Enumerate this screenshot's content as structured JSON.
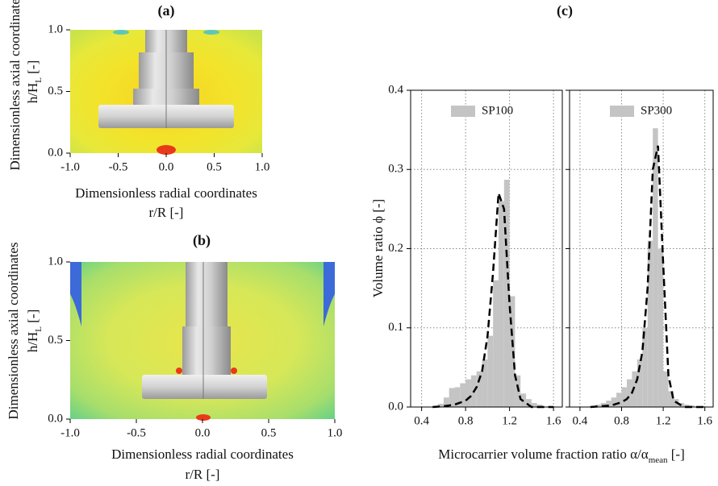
{
  "chart_data": [
    {
      "type": "contour",
      "title": "(a)",
      "xlabel": [
        "Dimensionless radial coordinates",
        "r/R [-]"
      ],
      "ylabel": [
        "Dimensionless axial coordinates",
        [
          "h/H",
          "L",
          " [-]"
        ]
      ],
      "xlim": [
        -1,
        1
      ],
      "ylim": [
        0,
        1
      ],
      "xticks": [
        {
          "value": -1,
          "label": "-1.0"
        },
        -0.5,
        {
          "value": 0,
          "label": "0.0"
        },
        0.5,
        {
          "value": 1,
          "label": "1.0"
        }
      ],
      "yticks": [
        {
          "value": 0,
          "label": "0.0"
        },
        0.5,
        {
          "value": 1,
          "label": "1.0"
        }
      ]
    },
    {
      "type": "contour",
      "title": "(b)",
      "xlabel": [
        "Dimensionless radial coordinates",
        "r/R [-]"
      ],
      "ylabel": [
        "Dimensionless axial coordinates",
        [
          "h/H",
          "L",
          " [-]"
        ]
      ],
      "xlim": [
        -1,
        1
      ],
      "ylim": [
        0,
        1
      ],
      "xticks": [
        {
          "value": -1,
          "label": "-1.0"
        },
        -0.5,
        {
          "value": 0,
          "label": "0.0"
        },
        0.5,
        {
          "value": 1,
          "label": "1.0"
        }
      ],
      "yticks": [
        {
          "value": 0,
          "label": "0.0"
        },
        0.5,
        {
          "value": 1,
          "label": "1.0"
        }
      ]
    },
    {
      "type": "histogram",
      "title": "(c)",
      "xlabel": [
        "Microcarrier volume fraction ratio α/α",
        "mean",
        " [-]"
      ],
      "ylabel": "Volume ratio ϕ [-]",
      "bins": [
        0.55,
        0.6,
        0.65,
        0.7,
        0.75,
        0.8,
        0.85,
        0.9,
        0.95,
        1.0,
        1.05,
        1.1,
        1.15,
        1.2,
        1.25,
        1.3,
        1.35,
        1.4,
        1.45,
        1.5
      ],
      "xlim": [
        0.3,
        1.68
      ],
      "ylim": [
        0,
        0.4
      ],
      "xticks": [
        0.4,
        0.8,
        1.2,
        1.6
      ],
      "yticks": [
        {
          "value": 0,
          "label": "0.0"
        },
        0.1,
        0.2,
        0.3,
        0.4
      ],
      "grid": true,
      "series": [
        {
          "name": "SP100",
          "color": "#c4c4c4",
          "values": [
            0.004,
            0.012,
            0.024,
            0.025,
            0.03,
            0.035,
            0.04,
            0.045,
            0.06,
            0.09,
            0.16,
            0.26,
            0.287,
            0.14,
            0.04,
            0.017,
            0.01,
            0.005,
            0.003
          ],
          "fit": {
            "x": [
              0.5,
              0.6,
              0.7,
              0.8,
              0.85,
              0.9,
              0.95,
              1.0,
              1.05,
              1.1,
              1.15,
              1.2,
              1.25,
              1.3,
              1.4,
              1.5,
              1.6
            ],
            "y": [
              0,
              0.001,
              0.003,
              0.008,
              0.014,
              0.025,
              0.045,
              0.09,
              0.17,
              0.27,
              0.25,
              0.13,
              0.04,
              0.01,
              0,
              0,
              0
            ]
          }
        },
        {
          "name": "SP300",
          "color": "#c4c4c4",
          "values": [
            0.003,
            0.005,
            0.008,
            0.012,
            0.018,
            0.025,
            0.035,
            0.045,
            0.06,
            0.1,
            0.21,
            0.352,
            0.2,
            0.045,
            0.02,
            0.01,
            0.005,
            0.003,
            0.002
          ],
          "fit": {
            "x": [
              0.5,
              0.6,
              0.7,
              0.8,
              0.85,
              0.9,
              0.95,
              1.0,
              1.05,
              1.1,
              1.15,
              1.2,
              1.25,
              1.3,
              1.4,
              1.5,
              1.6
            ],
            "y": [
              0,
              0.001,
              0.002,
              0.006,
              0.01,
              0.018,
              0.035,
              0.07,
              0.15,
              0.3,
              0.33,
              0.18,
              0.04,
              0.008,
              0,
              0,
              0
            ]
          }
        }
      ]
    }
  ]
}
